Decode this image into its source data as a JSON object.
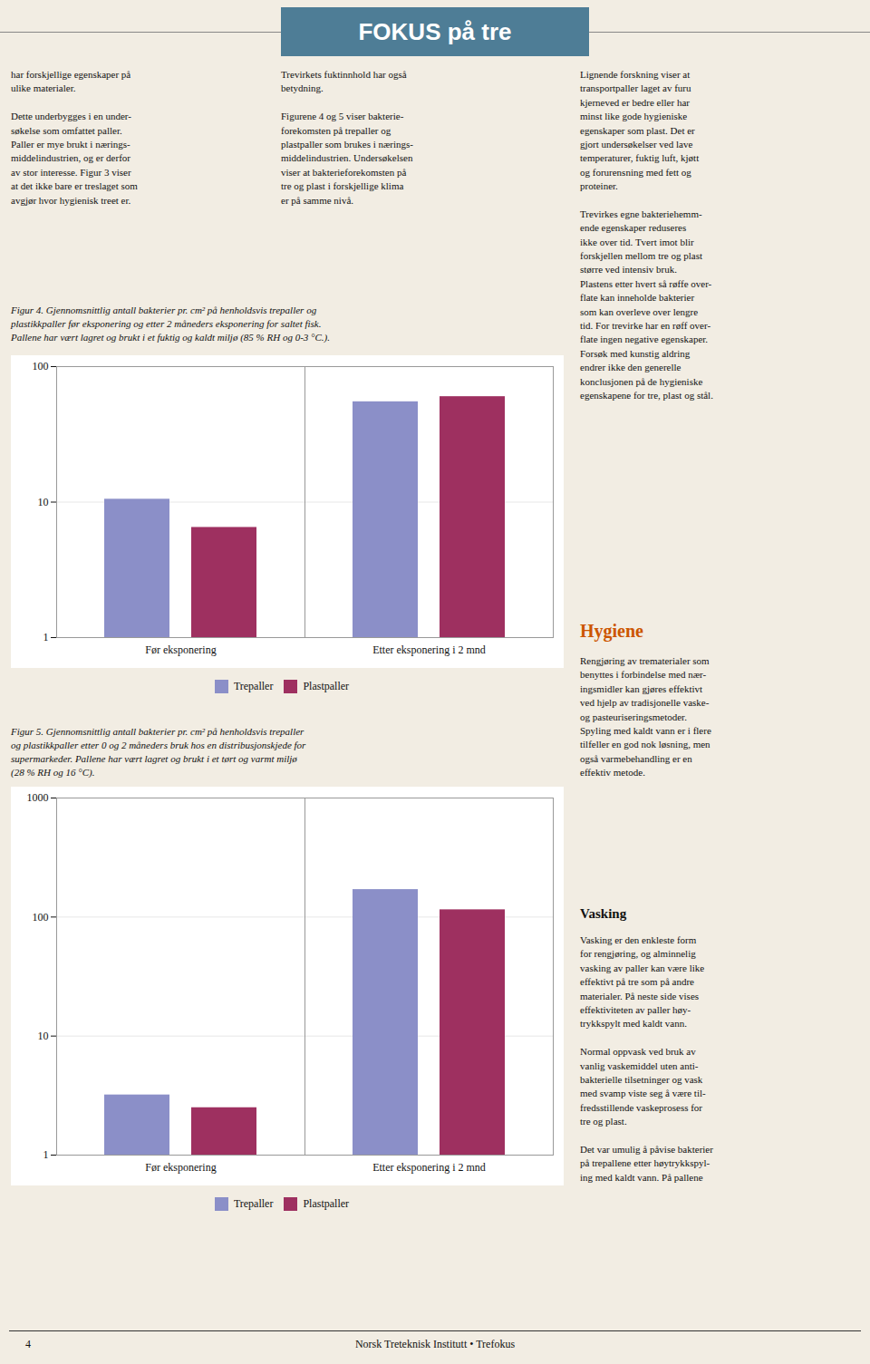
{
  "title": "FOKUS på tre",
  "annotations": [
    "har forskjellige egenskaper på\nulike materialer.\n\nDette underbygges i en under-\nsøkelse som omfattet paller.\nPaller er mye brukt i nærings-\nmiddelindustrien, og er derfor\nav stor interesse. Figur 3 viser\nat det ikke bare er treslaget som\navgjør hvor hygienisk treet er.",
    "Trevirkets fuktinnhold har også\nbetydning.\n\nFigurene 4 og 5 viser bakterie-\nforekomsten på trepaller og\nplastpaller som brukes i nærings-\nmiddelindustrien. Undersøkelsen\nviser at bakterieforekomsten på\ntre og plast i forskjellige klima\ner på samme nivå.",
    "Lignende forskning viser at\ntransportpaller laget av furu\nkjerneved er bedre eller har\nminst like gode hygieniske\negenskaper som plast. Det er\ngjort undersøkelser ved lave\ntemperaturer, fuktig luft, kjøtt\nog forurensning med fett og\nproteiner.\n\nTrevirkes egne bakteriehemm-\nende egenskaper reduseres\nikke over tid. Tvert imot blir\nforskjellen mellom tre og plast\nstørre ved intensiv bruk.\nPlastens etter hvert så røffe over-\nflate kan inneholde bakterier\nsom kan overleve over lengre\ntid. For trevirke har en røff over-\nflate ingen negative egenskaper.\nForsøk med kunstig aldring\nendrer ikke den generelle\nkonclusjonen på de hygieniske\negenskapene for tre, plast og stål.",
    "Hygiene",
    "Rengjøring av trematerialer som\nbenyttes i forbindelse med nær-\ningsmidler kan gjøres effektivt\nved hjelp av tradisjonelle vaske-\nog pasteuriseringsmetoder.\nSpyling med kaldt vann er i flere\ntilfeller en god nok løsning, men\nogså varmebehandling er en\neffektiv metode.",
    "Vasking",
    "Vasking er den enkleste form\nfor rengjøring, og alminnelig\nvasking av paller kan være like\neffektivt på tre som på andre\nmaterialer. På neste side vises\neffektiviteten av paller høy-\ntrykkspylt med kaldt vann.\n\nNormal oppvask ved bruk av\nvanlig vaskemiddel uten anti-\nbakterielle tilsetninger og vask\nmed svamp viste seg å være til-\nfredsstillende vaskeprosess for\ntre og plast.\n\nDet var umulig å påvise bakterier\npå trepallene etter høytrykkspyl-\ning med kaldt vann. På pallene",
    "4",
    "Norsk Treteknisk Institutt • Trefokus"
  ],
  "chart_data": [
    {
      "type": "bar",
      "title": "Figur 4. Gjennomsnittlig antall bakterier pr. cm² på henholdsvis trepaller og\nplastikkpaller før eksponering og etter 2 måneders eksponering for saltet fisk.\nPallene har vært lagret og brukt i et fuktig og kaldt miljø (85 % RH og 0-3 °C.).",
      "categories": [
        "Før eksponering",
        "Etter eksponering i 2 mnd"
      ],
      "series": [
        {
          "name": "Trepaller",
          "color": "#8b8fc8",
          "values": [
            10.5,
            55.0
          ]
        },
        {
          "name": "Plastpaller",
          "color": "#9e3060",
          "values": [
            6.5,
            60.0
          ]
        }
      ],
      "log": "y",
      "ylim": [
        1,
        100
      ],
      "yticks": [
        1,
        10,
        100
      ],
      "grid": true,
      "legend": "bottom"
    },
    {
      "type": "bar",
      "title": "Figur 5. Gjennomsnittlig antall bakterier pr. cm² på henholdsvis trepaller\nog plastikkpaller etter 0 og 2 måneders bruk hos en distribusjonskjede for\nsupermarkeder. Pallene har vært lagret og brukt i et tørt og varmt miljø\n(28 % RH og 16 °C).",
      "categories": [
        "Før eksponering",
        "Etter eksponering i 2 mnd"
      ],
      "series": [
        {
          "name": "Trepaller",
          "color": "#8b8fc8",
          "values": [
            3.2,
            170.0
          ]
        },
        {
          "name": "Plastpaller",
          "color": "#9e3060",
          "values": [
            2.5,
            115.0
          ]
        }
      ],
      "log": "y",
      "ylim": [
        1,
        1000
      ],
      "yticks": [
        1,
        10,
        100,
        1000
      ],
      "grid": true,
      "legend": "bottom"
    }
  ]
}
